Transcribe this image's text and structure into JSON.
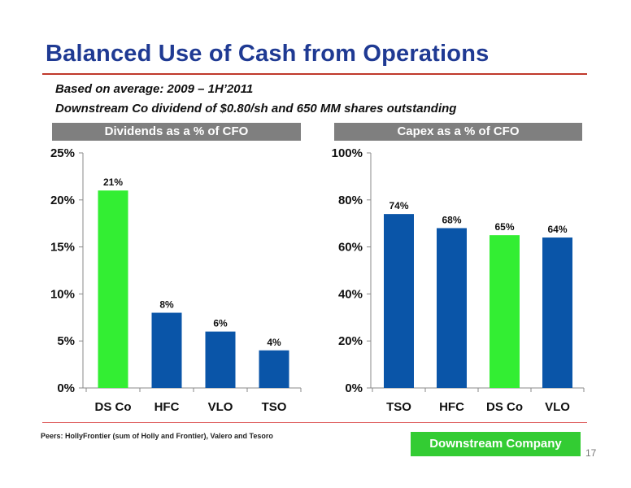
{
  "title": "Balanced Use of Cash from Operations",
  "subtitle_line1": "Based on average: 2009 – 1H’2011",
  "subtitle_line2": "Downstream Co dividend of $0.80/sh and 650 MM shares outstanding",
  "footnote": "Peers: HollyFrontier (sum of Holly and Frontier), Valero and Tesoro",
  "badge": "Downstream Company",
  "page_number": "17",
  "colors": {
    "green": "#33ee33",
    "blue": "#0a55a8",
    "title": "#1f3a93",
    "rule": "#c0392b"
  },
  "chart_data": [
    {
      "type": "bar",
      "title": "Dividends as a % of CFO",
      "categories": [
        "DS Co",
        "HFC",
        "VLO",
        "TSO"
      ],
      "values": [
        21,
        8,
        6,
        4
      ],
      "value_labels": [
        "21%",
        "8%",
        "6%",
        "4%"
      ],
      "colors": [
        "#33ee33",
        "#0a55a8",
        "#0a55a8",
        "#0a55a8"
      ],
      "ylim": [
        0,
        25
      ],
      "yticks": [
        0,
        5,
        10,
        15,
        20,
        25
      ],
      "ytick_labels": [
        "0%",
        "5%",
        "10%",
        "15%",
        "20%",
        "25%"
      ],
      "grid": false
    },
    {
      "type": "bar",
      "title": "Capex as a % of CFO",
      "categories": [
        "TSO",
        "HFC",
        "DS Co",
        "VLO"
      ],
      "values": [
        74,
        68,
        65,
        64
      ],
      "value_labels": [
        "74%",
        "68%",
        "65%",
        "64%"
      ],
      "colors": [
        "#0a55a8",
        "#0a55a8",
        "#33ee33",
        "#0a55a8"
      ],
      "ylim": [
        0,
        100
      ],
      "yticks": [
        0,
        20,
        40,
        60,
        80,
        100
      ],
      "ytick_labels": [
        "0%",
        "20%",
        "40%",
        "60%",
        "80%",
        "100%"
      ],
      "grid": false
    }
  ]
}
